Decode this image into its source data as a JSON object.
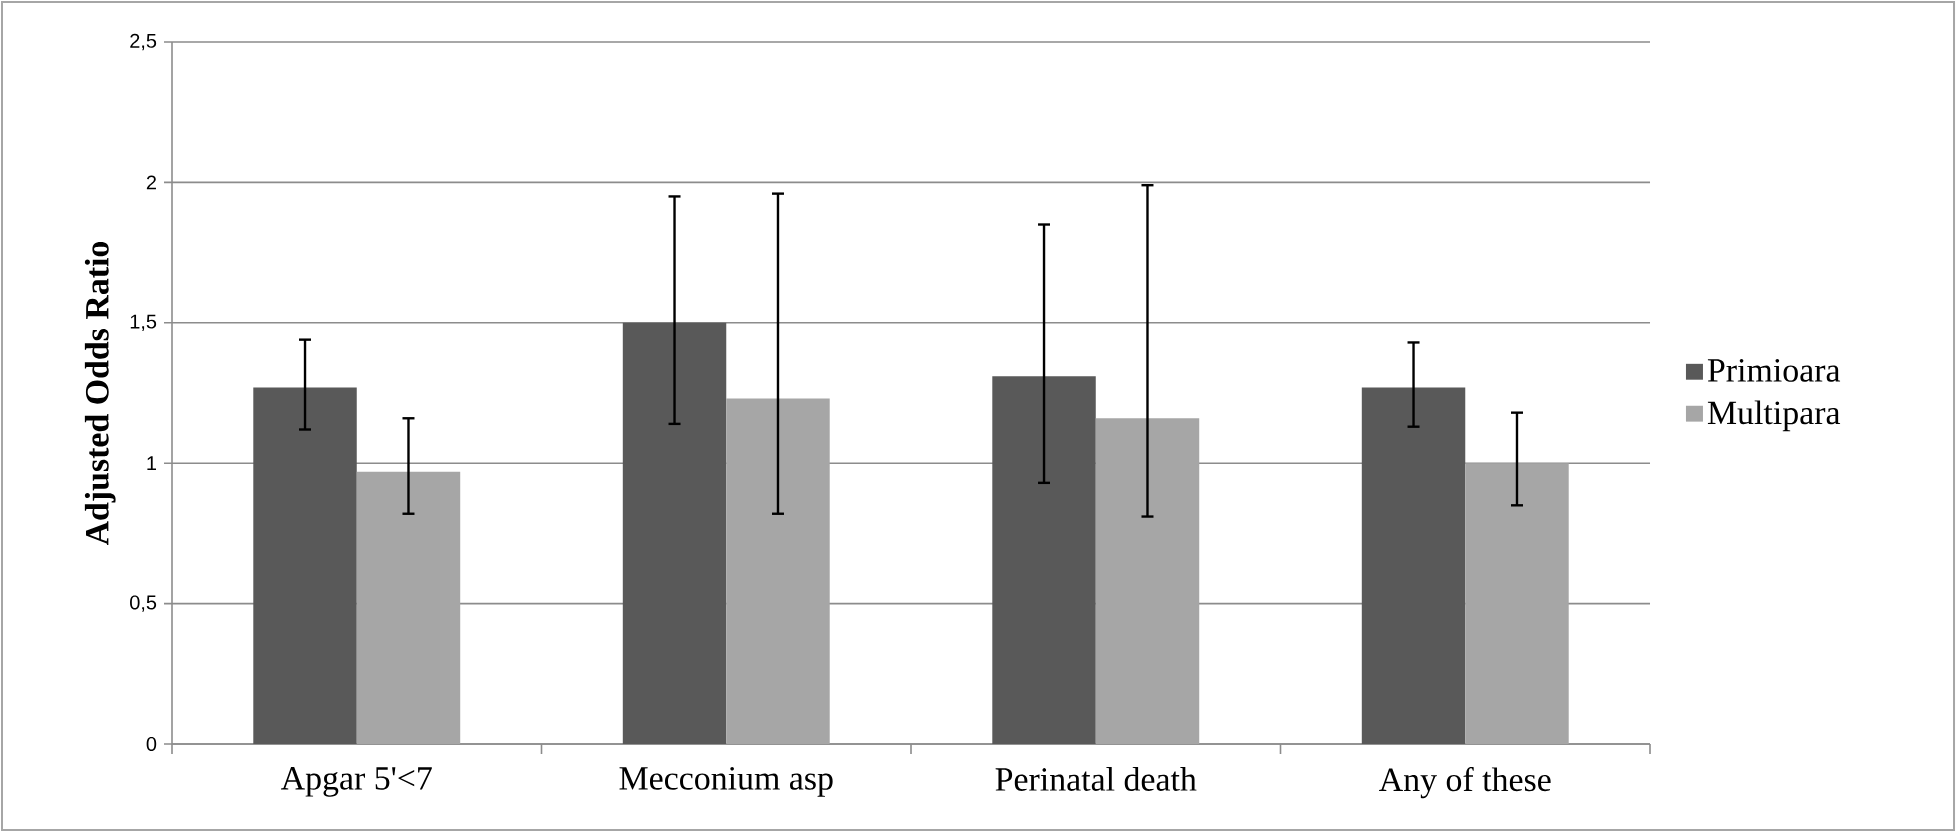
{
  "chart_data": {
    "type": "bar",
    "ylabel": "Adjusted Odds Ratio",
    "categories": [
      "Apgar 5'<7",
      "Mecconium asp",
      "Perinatal death",
      "Any of these"
    ],
    "series": [
      {
        "name": "Primioara",
        "color": "#595959",
        "values": [
          1.27,
          1.5,
          1.31,
          1.27
        ],
        "errors": [
          [
            1.12,
            1.44
          ],
          [
            1.14,
            1.95
          ],
          [
            0.93,
            1.85
          ],
          [
            1.13,
            1.43
          ]
        ]
      },
      {
        "name": "Multipara",
        "color": "#a6a6a6",
        "values": [
          0.97,
          1.23,
          1.16,
          1.0
        ],
        "errors": [
          [
            0.82,
            1.16
          ],
          [
            0.82,
            1.96
          ],
          [
            0.81,
            1.99
          ],
          [
            0.85,
            1.18
          ]
        ]
      }
    ],
    "ylim": [
      0,
      2.5
    ],
    "yticks": [
      0,
      {
        "value": 0.5,
        "label": "0,5"
      },
      1,
      {
        "value": 1.5,
        "label": "1,5"
      },
      2,
      {
        "value": 2.5,
        "label": "2,5"
      }
    ],
    "grid": "y",
    "legend": "right"
  }
}
